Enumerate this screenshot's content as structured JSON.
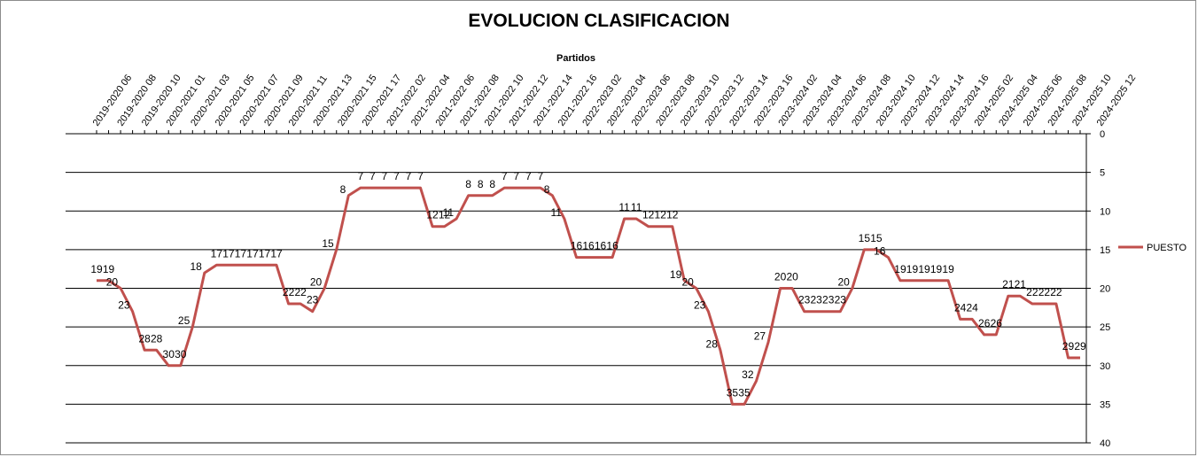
{
  "chart_data": {
    "type": "line",
    "title": "EVOLUCION CLASIFICACION",
    "xlabel": "Partidos",
    "ylabel": "",
    "ylim": [
      0,
      40
    ],
    "y_reversed": true,
    "x_axis_position": "top",
    "y_axis_position": "right",
    "y_ticks": [
      0,
      5,
      10,
      15,
      20,
      25,
      30,
      35,
      40
    ],
    "grid": "horizontal",
    "legend": "right",
    "x_tick_labels": [
      "2019-2020 06",
      "2019-2020 08",
      "2019-2020 10",
      "2020-2021 01",
      "2020-2021 03",
      "2020-2021 05",
      "2020-2021 07",
      "2020-2021 09",
      "2020-2021 11",
      "2020-2021 13",
      "2020-2021 15",
      "2020-2021 17",
      "2021-2022 02",
      "2021-2022 04",
      "2021-2022 06",
      "2021-2022 08",
      "2021-2022 10",
      "2021-2022 12",
      "2021-2022 14",
      "2021-2022 16",
      "2022-2023 02",
      "2022-2023 04",
      "2022-2023 06",
      "2022-2023 08",
      "2022-2023 10",
      "2022-2023 12",
      "2022-2023 14",
      "2022-2023 16",
      "2023-2024 02",
      "2023-2024 04",
      "2023-2024 06",
      "2023-2024 08",
      "2023-2024 10",
      "2023-2024 12",
      "2023-2024 14",
      "2023-2024 16",
      "2024-2025 02",
      "2024-2025 04",
      "2024-2025 06",
      "2024-2025 08",
      "2024-2025 10",
      "2024-2025 12"
    ],
    "series": [
      {
        "name": "PUESTO",
        "color": "#c0504d",
        "values": [
          19,
          19,
          20,
          23,
          28,
          28,
          30,
          30,
          25,
          18,
          17,
          17,
          17,
          17,
          17,
          17,
          22,
          22,
          23,
          20,
          15,
          8,
          7,
          7,
          7,
          7,
          7,
          7,
          12,
          12,
          11,
          8,
          8,
          8,
          7,
          7,
          7,
          7,
          8,
          11,
          16,
          16,
          16,
          16,
          11,
          11,
          12,
          12,
          12,
          19,
          20,
          23,
          28,
          35,
          35,
          32,
          27,
          20,
          20,
          23,
          23,
          23,
          23,
          20,
          15,
          15,
          16,
          19,
          19,
          19,
          19,
          19,
          24,
          24,
          26,
          26,
          21,
          21,
          22,
          22,
          22,
          29,
          29
        ]
      }
    ]
  }
}
